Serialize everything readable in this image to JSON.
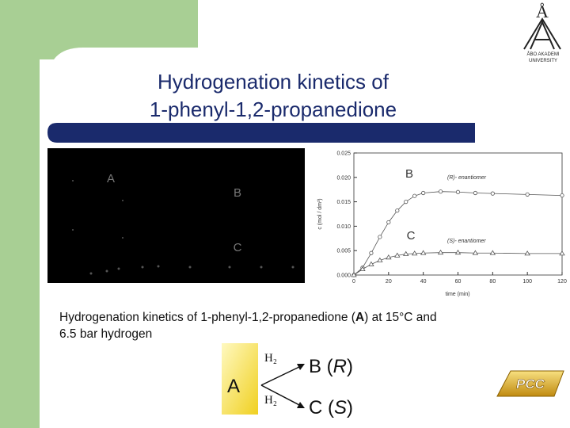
{
  "title": [
    "Hydrogenation kinetics of",
    "1‑phenyl‑1,2‑propanedione"
  ],
  "logo": {
    "mark": "Å",
    "lines": [
      "ÅBO AKADEMI",
      "UNIVERSITY"
    ]
  },
  "left_image": {
    "labels": [
      "A",
      "B",
      "C"
    ]
  },
  "chart_data": {
    "type": "line",
    "xlabel": "time (min)",
    "ylabel": "c (mol / dm³)",
    "annotations": [
      "B",
      "C",
      "(R)- enantiomer",
      "(S)- enantiomer"
    ],
    "x": [
      0,
      5,
      10,
      15,
      20,
      25,
      30,
      35,
      40,
      50,
      60,
      70,
      80,
      100,
      120
    ],
    "series": [
      {
        "name": "(R)- enantiomer",
        "color": "#555555",
        "marker": "circle",
        "values": [
          0,
          0.0015,
          0.0045,
          0.0078,
          0.0108,
          0.0132,
          0.015,
          0.0162,
          0.0168,
          0.0171,
          0.017,
          0.0168,
          0.0167,
          0.0165,
          0.0163
        ]
      },
      {
        "name": "(S)- enantiomer",
        "color": "#555555",
        "marker": "triangle",
        "values": [
          0,
          0.0012,
          0.0022,
          0.003,
          0.0036,
          0.004,
          0.0043,
          0.0044,
          0.0045,
          0.0046,
          0.0046,
          0.0045,
          0.0045,
          0.0044,
          0.0044
        ]
      }
    ],
    "xlim": [
      0,
      120
    ],
    "xticks": [
      0,
      20,
      40,
      60,
      80,
      100,
      120
    ],
    "ylim": [
      0,
      0.025
    ],
    "yticks": [
      {
        "value": 0,
        "label": "0.000"
      },
      {
        "value": 0.005,
        "label": "0.005"
      },
      {
        "value": 0.01,
        "label": "0.010"
      },
      {
        "value": 0.015,
        "label": "0.015"
      },
      {
        "value": 0.02,
        "label": "0.020"
      },
      {
        "value": 0.025,
        "label": "0.025"
      }
    ]
  },
  "caption": {
    "parts": [
      "Hydrogenation kinetics of 1‑phenyl‑1,2‑propanedione (",
      "A",
      ") at 15°C and",
      "6.5 bar hydrogen"
    ]
  },
  "scheme": {
    "reactant": "A",
    "reagents": [
      "H₂",
      "H₂"
    ],
    "products": [
      [
        "B (",
        "R",
        ")"
      ],
      [
        "C (",
        "S",
        ")"
      ]
    ]
  },
  "badge": "PCC"
}
